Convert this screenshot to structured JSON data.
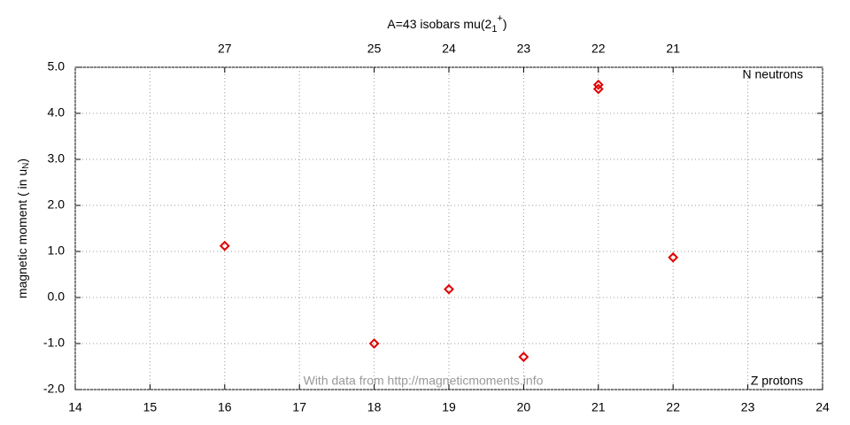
{
  "chart_data": {
    "type": "scatter",
    "title": [
      "A=43 isobars mu(2",
      "1",
      "+",
      ")"
    ],
    "ylabel": [
      "magnetic moment ( in u",
      "N",
      ")"
    ],
    "x": [
      16,
      18,
      19,
      20,
      21,
      21,
      22
    ],
    "values": [
      1.12,
      -1.0,
      0.18,
      -1.29,
      4.62,
      4.53,
      0.87
    ],
    "color": "#e00000",
    "xlim": [
      14,
      24
    ],
    "xticks": [
      14,
      15,
      16,
      17,
      18,
      19,
      20,
      21,
      22,
      23,
      24
    ],
    "x2ticks": [
      {
        "value": 16,
        "label": "27"
      },
      {
        "value": 18,
        "label": "25"
      },
      {
        "value": 19,
        "label": "24"
      },
      {
        "value": 20,
        "label": "23"
      },
      {
        "value": 21,
        "label": "22"
      },
      {
        "value": 22,
        "label": "21"
      }
    ],
    "ylim": [
      -2,
      5
    ],
    "yticks": [
      {
        "value": -2,
        "label": "-2.0"
      },
      {
        "value": -1,
        "label": "-1.0"
      },
      {
        "value": 0,
        "label": "0.0"
      },
      {
        "value": 1,
        "label": "1.0"
      },
      {
        "value": 2,
        "label": "2.0"
      },
      {
        "value": 3,
        "label": "3.0"
      },
      {
        "value": 4,
        "label": "4.0"
      },
      {
        "value": 5,
        "label": "5.0"
      }
    ],
    "grid": true,
    "annotations": [
      "N neutrons",
      "Z protons",
      "With data from http://magneticmoments.info"
    ]
  }
}
